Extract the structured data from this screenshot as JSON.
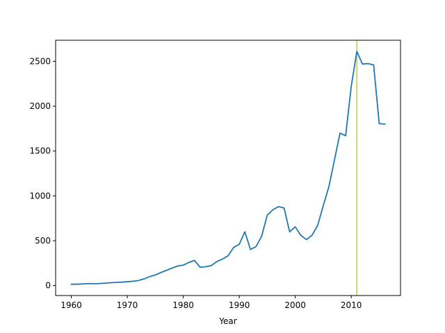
{
  "chart_data": {
    "type": "line",
    "title": "",
    "xlabel": "Year",
    "ylabel": "",
    "xlim": [
      1957.2,
      2018.8
    ],
    "ylim": [
      -111.3,
      2735.3
    ],
    "grid": false,
    "x_ticks": [
      1960,
      1970,
      1980,
      1990,
      2000,
      2010
    ],
    "y_ticks": [
      0,
      500,
      1000,
      1500,
      2000,
      2500
    ],
    "x_tick_labels": [
      "1960",
      "1970",
      "1980",
      "1990",
      "2000",
      "2010"
    ],
    "y_tick_labels": [
      "0",
      "500",
      "1000",
      "1500",
      "2000",
      "2500"
    ],
    "series": [
      {
        "color": "#1f77b4",
        "x": [
          1960,
          1961,
          1962,
          1963,
          1964,
          1965,
          1966,
          1967,
          1968,
          1969,
          1970,
          1971,
          1972,
          1973,
          1974,
          1975,
          1976,
          1977,
          1978,
          1979,
          1980,
          1981,
          1982,
          1983,
          1984,
          1985,
          1986,
          1987,
          1988,
          1989,
          1990,
          1991,
          1992,
          1993,
          1994,
          1995,
          1996,
          1997,
          1998,
          1999,
          2000,
          2001,
          2002,
          2003,
          2004,
          2005,
          2006,
          2007,
          2008,
          2009,
          2010,
          2011,
          2012,
          2013,
          2014,
          2015,
          2016
        ],
        "y": [
          15,
          15,
          18,
          22,
          20,
          22,
          27,
          32,
          35,
          38,
          43,
          48,
          56,
          75,
          100,
          118,
          145,
          170,
          195,
          218,
          228,
          258,
          280,
          205,
          210,
          222,
          268,
          295,
          332,
          425,
          460,
          600,
          402,
          435,
          550,
          785,
          845,
          880,
          865,
          600,
          655,
          560,
          512,
          562,
          670,
          890,
          1100,
          1400,
          1700,
          1670,
          2220,
          2610,
          2470,
          2475,
          2460,
          1805,
          1800
        ]
      }
    ],
    "vline": {
      "x": 2011,
      "color": "#bfbf00"
    }
  }
}
